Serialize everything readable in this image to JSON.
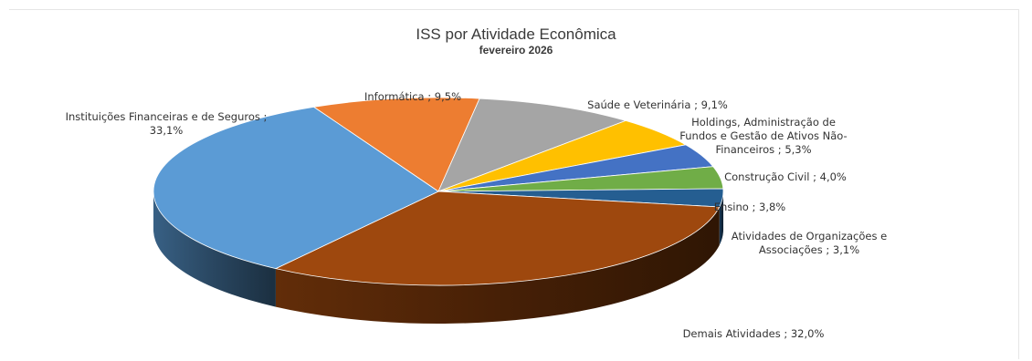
{
  "chart_data": {
    "type": "pie",
    "title": "ISS por Atividade Econômica",
    "subtitle": "fevereiro 2026",
    "unit": "%",
    "slices": [
      {
        "name": "Informática",
        "value": 9.5,
        "color": "#ED7D31",
        "label_lines": [
          "Informática ; 9,5%"
        ]
      },
      {
        "name": "Saúde e Veterinária",
        "value": 9.1,
        "color": "#A5A5A5",
        "label_lines": [
          "Saúde e Veterinária ; 9,1%"
        ]
      },
      {
        "name": "Holdings, Administração de Fundos e Gestão de Ativos Não-Financeiros",
        "value": 5.3,
        "color": "#FFC000",
        "label_lines": [
          "Holdings, Administração de",
          "Fundos e Gestão de Ativos Não-",
          "Financeiros ; 5,3%"
        ]
      },
      {
        "name": "Construção Civil",
        "value": 4.0,
        "color": "#4472C4",
        "label_lines": [
          "Construção Civil ; 4,0%"
        ]
      },
      {
        "name": "Ensino",
        "value": 3.8,
        "color": "#70AD47",
        "label_lines": [
          "Ensino ; 3,8%"
        ]
      },
      {
        "name": "Atividades de Organizações e Associações",
        "value": 3.1,
        "color": "#255E91",
        "label_lines": [
          "Atividades de Organizações e",
          "Associações ; 3,1%"
        ]
      },
      {
        "name": "Demais Atividades",
        "value": 32.0,
        "color": "#9E480E",
        "label_lines": [
          "Demais Atividades ; 32,0%"
        ]
      },
      {
        "name": "Instituições Financeiras e de Seguros",
        "value": 33.1,
        "color": "#5B9BD5",
        "label_lines": [
          "Instituições Financeiras e de Seguros ;",
          "33,1%"
        ]
      }
    ],
    "legend": "none"
  }
}
